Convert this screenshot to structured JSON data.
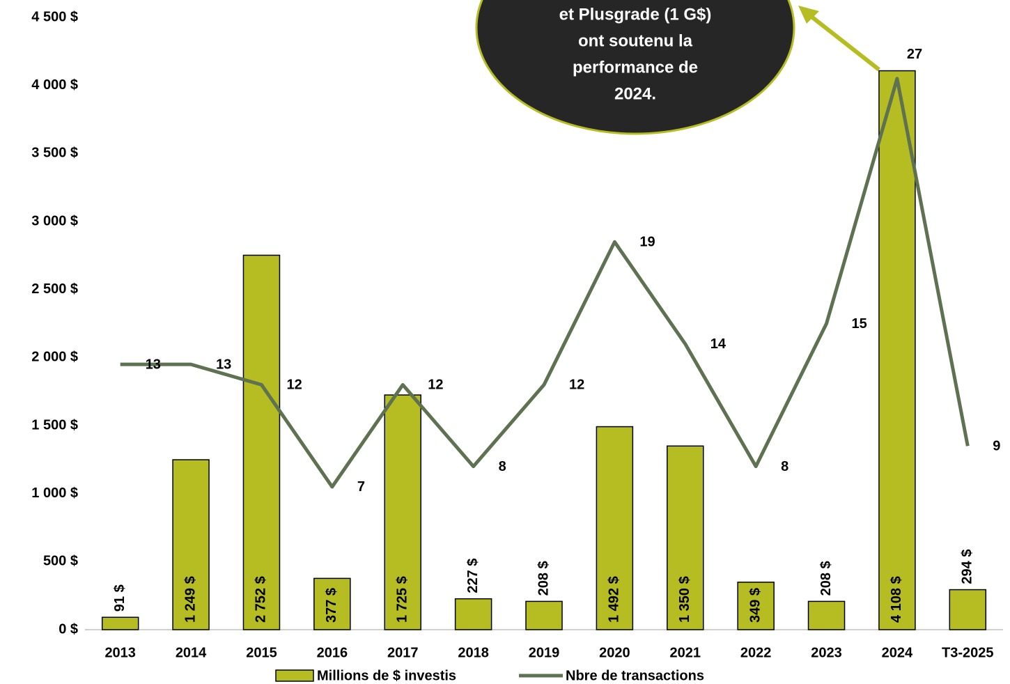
{
  "chart_data": {
    "type": "bar-line",
    "categories": [
      "2013",
      "2014",
      "2015",
      "2016",
      "2017",
      "2018",
      "2019",
      "2020",
      "2021",
      "2022",
      "2023",
      "2024",
      "T3-2025"
    ],
    "series": [
      {
        "name": "Millions de $ investis",
        "type": "bar",
        "color": "#b5bd22",
        "values": [
          91,
          1249,
          2752,
          377,
          1725,
          227,
          208,
          1492,
          1350,
          349,
          208,
          4108,
          294
        ],
        "value_labels": [
          "91 $",
          "1 249 $",
          "2 752 $",
          "377 $",
          "1 725 $",
          "227 $",
          "208 $",
          "1 492 $",
          "1 350 $",
          "349 $",
          "208 $",
          "4 108 $",
          "294 $"
        ]
      },
      {
        "name": "Nbre de transactions",
        "type": "line",
        "axis": "y2",
        "color": "#5e7150",
        "values": [
          13,
          13,
          12,
          7,
          12,
          8,
          12,
          19,
          14,
          8,
          15,
          27,
          9
        ]
      }
    ],
    "ylim": [
      0,
      4500
    ],
    "yticks": [
      {
        "value": 0,
        "label": "0 $"
      },
      {
        "value": 500,
        "label": "500 $"
      },
      {
        "value": 1000,
        "label": "1 000 $"
      },
      {
        "value": 1500,
        "label": "1 500 $"
      },
      {
        "value": 2000,
        "label": "2 000 $"
      },
      {
        "value": 2500,
        "label": "2 500 $"
      },
      {
        "value": 3000,
        "label": "3 000 $"
      },
      {
        "value": 3500,
        "label": "3 500 $"
      },
      {
        "value": 4000,
        "label": "4 000 $"
      },
      {
        "value": 4500,
        "label": "4 500 $"
      }
    ],
    "y2lim": [
      0,
      30
    ],
    "annotation": [
      "et Plusgrade (1 G$)",
      "ont soutenu la",
      "performance de",
      "2024."
    ],
    "legend": "bottom"
  }
}
